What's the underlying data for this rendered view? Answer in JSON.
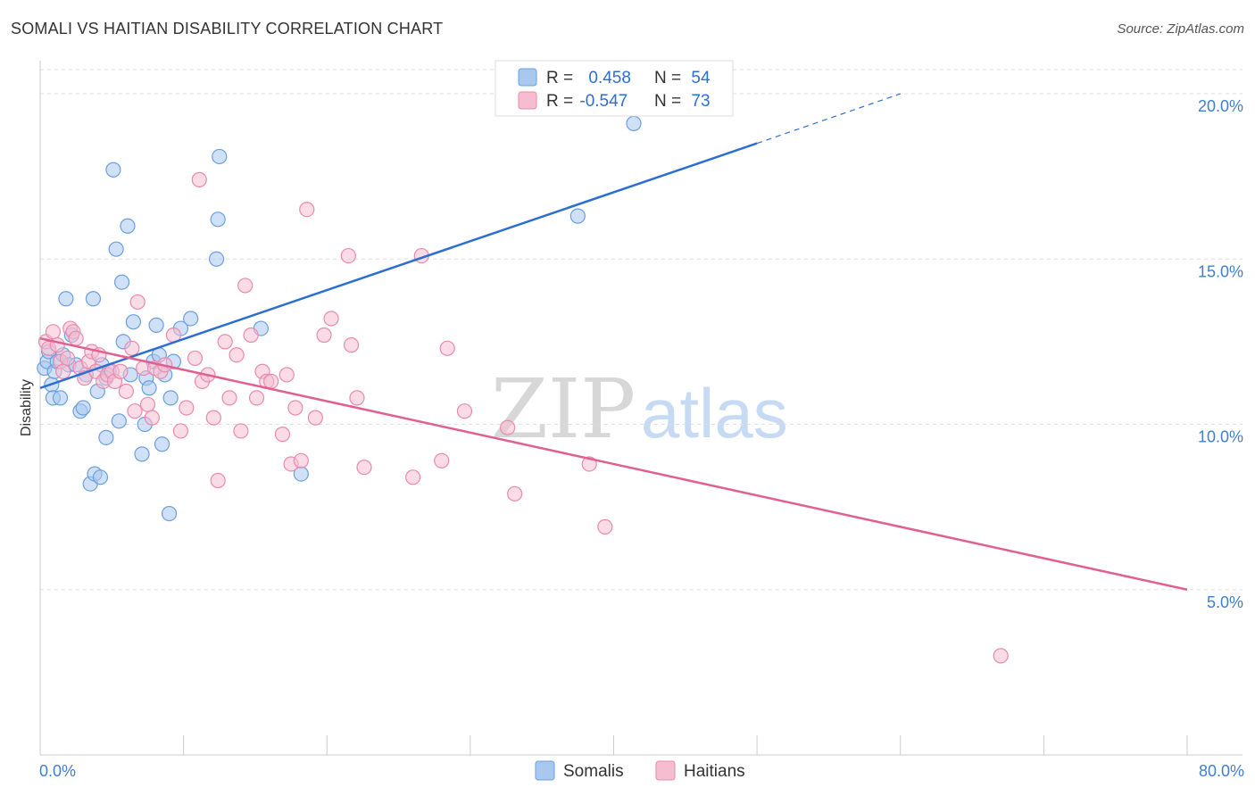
{
  "title": "SOMALI VS HAITIAN DISABILITY CORRELATION CHART",
  "source": "Source: ZipAtlas.com",
  "watermark": {
    "zip": "ZIP",
    "atlas": "atlas"
  },
  "colors": {
    "somalis_fill": "#a9c8f0",
    "somalis_stroke": "#6a9fe0",
    "somalis_line": "#2d6fd0",
    "haitians_fill": "#f6bdd1",
    "haitians_stroke": "#e98aac",
    "haitians_line": "#e0608f",
    "tick_label": "#3f7fd0",
    "grid": "#dddddd"
  },
  "legend": {
    "row1": {
      "r_label": "R = ",
      "r_value": "0.458",
      "n_label": "N = ",
      "n_value": "54"
    },
    "row2": {
      "r_label": "R = ",
      "r_value": "-0.547",
      "n_label": "N = ",
      "n_value": "73"
    }
  },
  "chart_data": {
    "type": "scatter",
    "title": "SOMALI VS HAITIAN DISABILITY CORRELATION CHART",
    "xlabel": "",
    "ylabel": "Disability",
    "xlim": [
      0,
      80
    ],
    "ylim": [
      0,
      21
    ],
    "x_tick_labels": [
      "0.0%",
      "80.0%"
    ],
    "y_ticks": [
      5,
      10,
      15,
      20
    ],
    "y_tick_labels": [
      "5.0%",
      "10.0%",
      "15.0%",
      "20.0%"
    ],
    "grid": true,
    "legend_position": "bottom",
    "series": [
      {
        "name": "Somalis",
        "color": "#a9c8f0",
        "r": 0.458,
        "n": 54,
        "trend": {
          "x": [
            0,
            50
          ],
          "y": [
            11.1,
            18.5
          ],
          "dashed_to": {
            "x": 60,
            "y": 20
          }
        },
        "points": [
          [
            0.3,
            11.7
          ],
          [
            0.5,
            11.9
          ],
          [
            0.6,
            12.2
          ],
          [
            0.8,
            11.2
          ],
          [
            0.9,
            10.8
          ],
          [
            1.0,
            11.6
          ],
          [
            1.2,
            11.9
          ],
          [
            1.4,
            10.8
          ],
          [
            1.6,
            12.1
          ],
          [
            1.8,
            13.8
          ],
          [
            2.0,
            11.8
          ],
          [
            2.2,
            12.7
          ],
          [
            2.5,
            11.8
          ],
          [
            2.8,
            10.4
          ],
          [
            3.0,
            10.5
          ],
          [
            3.2,
            11.5
          ],
          [
            3.5,
            8.2
          ],
          [
            3.7,
            13.8
          ],
          [
            3.8,
            8.5
          ],
          [
            4.0,
            11.0
          ],
          [
            4.2,
            8.4
          ],
          [
            4.3,
            11.8
          ],
          [
            4.6,
            9.6
          ],
          [
            4.8,
            11.6
          ],
          [
            5.1,
            17.7
          ],
          [
            5.3,
            15.3
          ],
          [
            5.5,
            10.1
          ],
          [
            5.7,
            14.3
          ],
          [
            5.8,
            12.5
          ],
          [
            6.1,
            16.0
          ],
          [
            6.3,
            11.5
          ],
          [
            6.5,
            13.1
          ],
          [
            7.1,
            9.1
          ],
          [
            7.3,
            10.0
          ],
          [
            7.4,
            11.4
          ],
          [
            7.6,
            11.1
          ],
          [
            7.9,
            11.9
          ],
          [
            8.1,
            13.0
          ],
          [
            8.3,
            12.1
          ],
          [
            8.5,
            9.4
          ],
          [
            8.7,
            11.5
          ],
          [
            9.0,
            7.3
          ],
          [
            9.1,
            10.8
          ],
          [
            9.3,
            11.9
          ],
          [
            9.8,
            12.9
          ],
          [
            10.5,
            13.2
          ],
          [
            12.3,
            15.0
          ],
          [
            12.4,
            16.2
          ],
          [
            12.5,
            18.1
          ],
          [
            15.4,
            12.9
          ],
          [
            18.2,
            8.5
          ],
          [
            41.4,
            19.1
          ],
          [
            37.5,
            16.3
          ],
          [
            4.6,
            11.4
          ]
        ]
      },
      {
        "name": "Haitians",
        "color": "#f6bdd1",
        "r": -0.547,
        "n": 73,
        "trend": {
          "x": [
            0,
            80
          ],
          "y": [
            12.6,
            5.0
          ]
        },
        "points": [
          [
            0.4,
            12.5
          ],
          [
            0.6,
            12.3
          ],
          [
            0.9,
            12.8
          ],
          [
            1.2,
            12.4
          ],
          [
            1.4,
            11.9
          ],
          [
            1.6,
            11.6
          ],
          [
            1.9,
            12.0
          ],
          [
            2.1,
            12.9
          ],
          [
            2.3,
            12.8
          ],
          [
            2.5,
            12.6
          ],
          [
            2.8,
            11.7
          ],
          [
            3.1,
            11.4
          ],
          [
            3.4,
            11.9
          ],
          [
            3.6,
            12.2
          ],
          [
            3.9,
            11.6
          ],
          [
            4.1,
            12.1
          ],
          [
            4.4,
            11.3
          ],
          [
            4.7,
            11.5
          ],
          [
            5.0,
            11.6
          ],
          [
            5.2,
            11.3
          ],
          [
            5.6,
            11.6
          ],
          [
            6.0,
            11.0
          ],
          [
            6.4,
            12.3
          ],
          [
            6.6,
            10.4
          ],
          [
            6.8,
            13.7
          ],
          [
            7.2,
            11.7
          ],
          [
            7.5,
            10.6
          ],
          [
            7.8,
            10.2
          ],
          [
            8.0,
            11.7
          ],
          [
            8.4,
            11.6
          ],
          [
            8.7,
            11.8
          ],
          [
            9.3,
            12.7
          ],
          [
            9.8,
            9.8
          ],
          [
            10.2,
            10.5
          ],
          [
            10.8,
            12.0
          ],
          [
            11.1,
            17.4
          ],
          [
            11.3,
            11.3
          ],
          [
            11.7,
            11.5
          ],
          [
            12.1,
            10.2
          ],
          [
            12.4,
            8.3
          ],
          [
            12.9,
            12.5
          ],
          [
            13.2,
            10.8
          ],
          [
            13.7,
            12.1
          ],
          [
            14.0,
            9.8
          ],
          [
            14.3,
            14.2
          ],
          [
            14.7,
            12.7
          ],
          [
            15.1,
            10.8
          ],
          [
            15.5,
            11.6
          ],
          [
            15.8,
            11.3
          ],
          [
            16.1,
            11.3
          ],
          [
            16.9,
            9.7
          ],
          [
            17.2,
            11.5
          ],
          [
            17.5,
            8.8
          ],
          [
            17.8,
            10.5
          ],
          [
            18.2,
            8.9
          ],
          [
            18.6,
            16.5
          ],
          [
            19.2,
            10.2
          ],
          [
            19.8,
            12.7
          ],
          [
            20.3,
            13.2
          ],
          [
            21.5,
            15.1
          ],
          [
            21.7,
            12.4
          ],
          [
            22.1,
            10.8
          ],
          [
            22.6,
            8.7
          ],
          [
            26.0,
            8.4
          ],
          [
            26.6,
            15.1
          ],
          [
            28.0,
            8.9
          ],
          [
            28.4,
            12.3
          ],
          [
            29.6,
            10.4
          ],
          [
            32.6,
            9.9
          ],
          [
            33.1,
            7.9
          ],
          [
            38.3,
            8.8
          ],
          [
            39.4,
            6.9
          ],
          [
            67.0,
            3.0
          ]
        ]
      }
    ]
  },
  "bottom_legend": {
    "somalis": "Somalis",
    "haitians": "Haitians"
  }
}
